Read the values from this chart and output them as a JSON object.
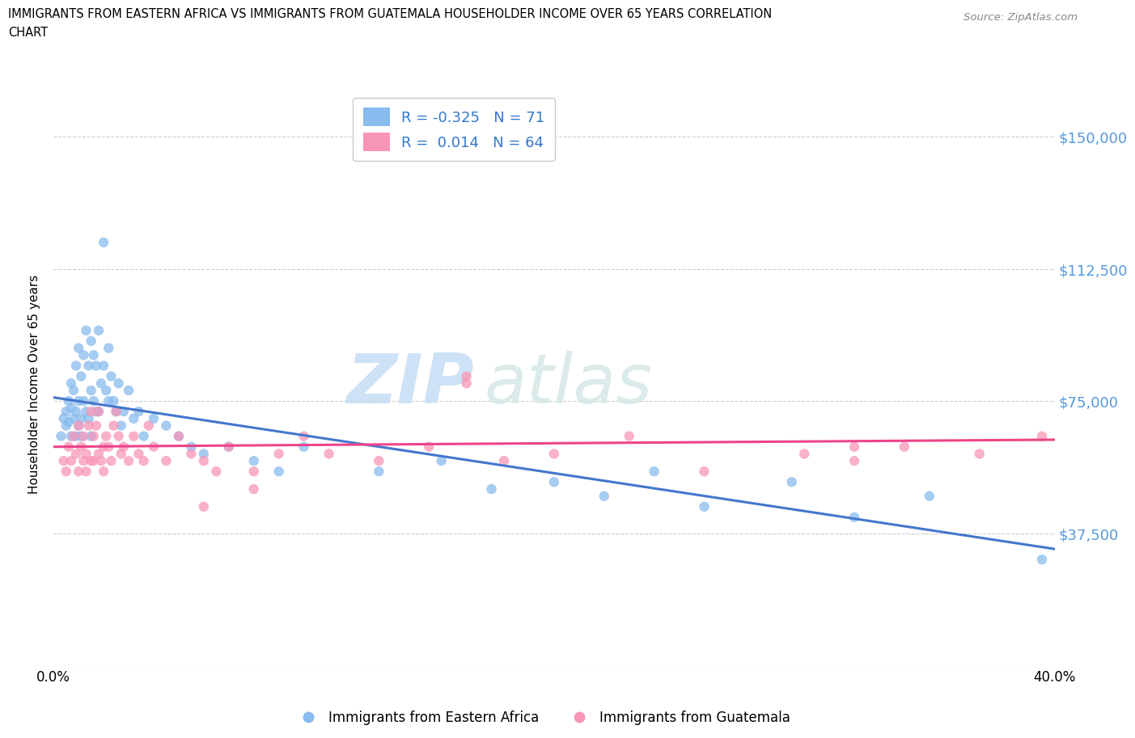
{
  "title_line1": "IMMIGRANTS FROM EASTERN AFRICA VS IMMIGRANTS FROM GUATEMALA HOUSEHOLDER INCOME OVER 65 YEARS CORRELATION",
  "title_line2": "CHART",
  "source": "Source: ZipAtlas.com",
  "ylabel": "Householder Income Over 65 years",
  "xlim": [
    0.0,
    0.4
  ],
  "ylim": [
    0,
    160000
  ],
  "yticks": [
    0,
    37500,
    75000,
    112500,
    150000
  ],
  "ytick_labels_right": [
    "",
    "$37,500",
    "$75,000",
    "$112,500",
    "$150,000"
  ],
  "xticks": [
    0.0,
    0.05,
    0.1,
    0.15,
    0.2,
    0.25,
    0.3,
    0.35,
    0.4
  ],
  "xtick_labels": [
    "0.0%",
    "",
    "",
    "",
    "",
    "",
    "",
    "",
    "40.0%"
  ],
  "blue_R": -0.325,
  "blue_N": 71,
  "pink_R": 0.014,
  "pink_N": 64,
  "blue_color": "#88bbee",
  "pink_color": "#f896b8",
  "blue_line_color": "#4477cc",
  "pink_line_color": "#ee4488",
  "blue_line_y0": 76000,
  "blue_line_y1": 33000,
  "pink_line_y0": 62000,
  "pink_line_y1": 64000,
  "blue_scatter_x": [
    0.003,
    0.004,
    0.005,
    0.005,
    0.006,
    0.006,
    0.007,
    0.007,
    0.007,
    0.008,
    0.008,
    0.009,
    0.009,
    0.009,
    0.01,
    0.01,
    0.01,
    0.011,
    0.011,
    0.011,
    0.012,
    0.012,
    0.013,
    0.013,
    0.014,
    0.014,
    0.015,
    0.015,
    0.015,
    0.016,
    0.016,
    0.017,
    0.017,
    0.018,
    0.018,
    0.019,
    0.02,
    0.02,
    0.021,
    0.022,
    0.022,
    0.023,
    0.024,
    0.025,
    0.026,
    0.027,
    0.028,
    0.03,
    0.032,
    0.034,
    0.036,
    0.04,
    0.045,
    0.05,
    0.055,
    0.06,
    0.07,
    0.08,
    0.09,
    0.1,
    0.13,
    0.155,
    0.175,
    0.2,
    0.22,
    0.24,
    0.26,
    0.295,
    0.32,
    0.35,
    0.395
  ],
  "blue_scatter_y": [
    65000,
    70000,
    72000,
    68000,
    75000,
    69000,
    80000,
    73000,
    65000,
    78000,
    70000,
    85000,
    72000,
    65000,
    90000,
    75000,
    68000,
    82000,
    70000,
    65000,
    88000,
    75000,
    95000,
    72000,
    85000,
    70000,
    92000,
    78000,
    65000,
    88000,
    75000,
    85000,
    72000,
    95000,
    72000,
    80000,
    120000,
    85000,
    78000,
    90000,
    75000,
    82000,
    75000,
    72000,
    80000,
    68000,
    72000,
    78000,
    70000,
    72000,
    65000,
    70000,
    68000,
    65000,
    62000,
    60000,
    62000,
    58000,
    55000,
    62000,
    55000,
    58000,
    50000,
    52000,
    48000,
    55000,
    45000,
    52000,
    42000,
    48000,
    30000
  ],
  "pink_scatter_x": [
    0.004,
    0.005,
    0.006,
    0.007,
    0.008,
    0.009,
    0.01,
    0.01,
    0.011,
    0.012,
    0.012,
    0.013,
    0.013,
    0.014,
    0.015,
    0.015,
    0.016,
    0.016,
    0.017,
    0.018,
    0.018,
    0.019,
    0.02,
    0.02,
    0.021,
    0.022,
    0.023,
    0.024,
    0.025,
    0.026,
    0.027,
    0.028,
    0.03,
    0.032,
    0.034,
    0.036,
    0.038,
    0.04,
    0.045,
    0.05,
    0.055,
    0.06,
    0.065,
    0.07,
    0.08,
    0.09,
    0.1,
    0.11,
    0.13,
    0.15,
    0.165,
    0.18,
    0.2,
    0.23,
    0.26,
    0.3,
    0.32,
    0.34,
    0.37,
    0.395,
    0.06,
    0.08,
    0.165,
    0.32
  ],
  "pink_scatter_y": [
    58000,
    55000,
    62000,
    58000,
    65000,
    60000,
    68000,
    55000,
    62000,
    65000,
    58000,
    60000,
    55000,
    68000,
    72000,
    58000,
    65000,
    58000,
    68000,
    72000,
    60000,
    58000,
    62000,
    55000,
    65000,
    62000,
    58000,
    68000,
    72000,
    65000,
    60000,
    62000,
    58000,
    65000,
    60000,
    58000,
    68000,
    62000,
    58000,
    65000,
    60000,
    58000,
    55000,
    62000,
    50000,
    60000,
    65000,
    60000,
    58000,
    62000,
    80000,
    58000,
    60000,
    65000,
    55000,
    60000,
    58000,
    62000,
    60000,
    65000,
    45000,
    55000,
    82000,
    62000
  ],
  "watermark_zip": "ZIP",
  "watermark_atlas": "atlas"
}
